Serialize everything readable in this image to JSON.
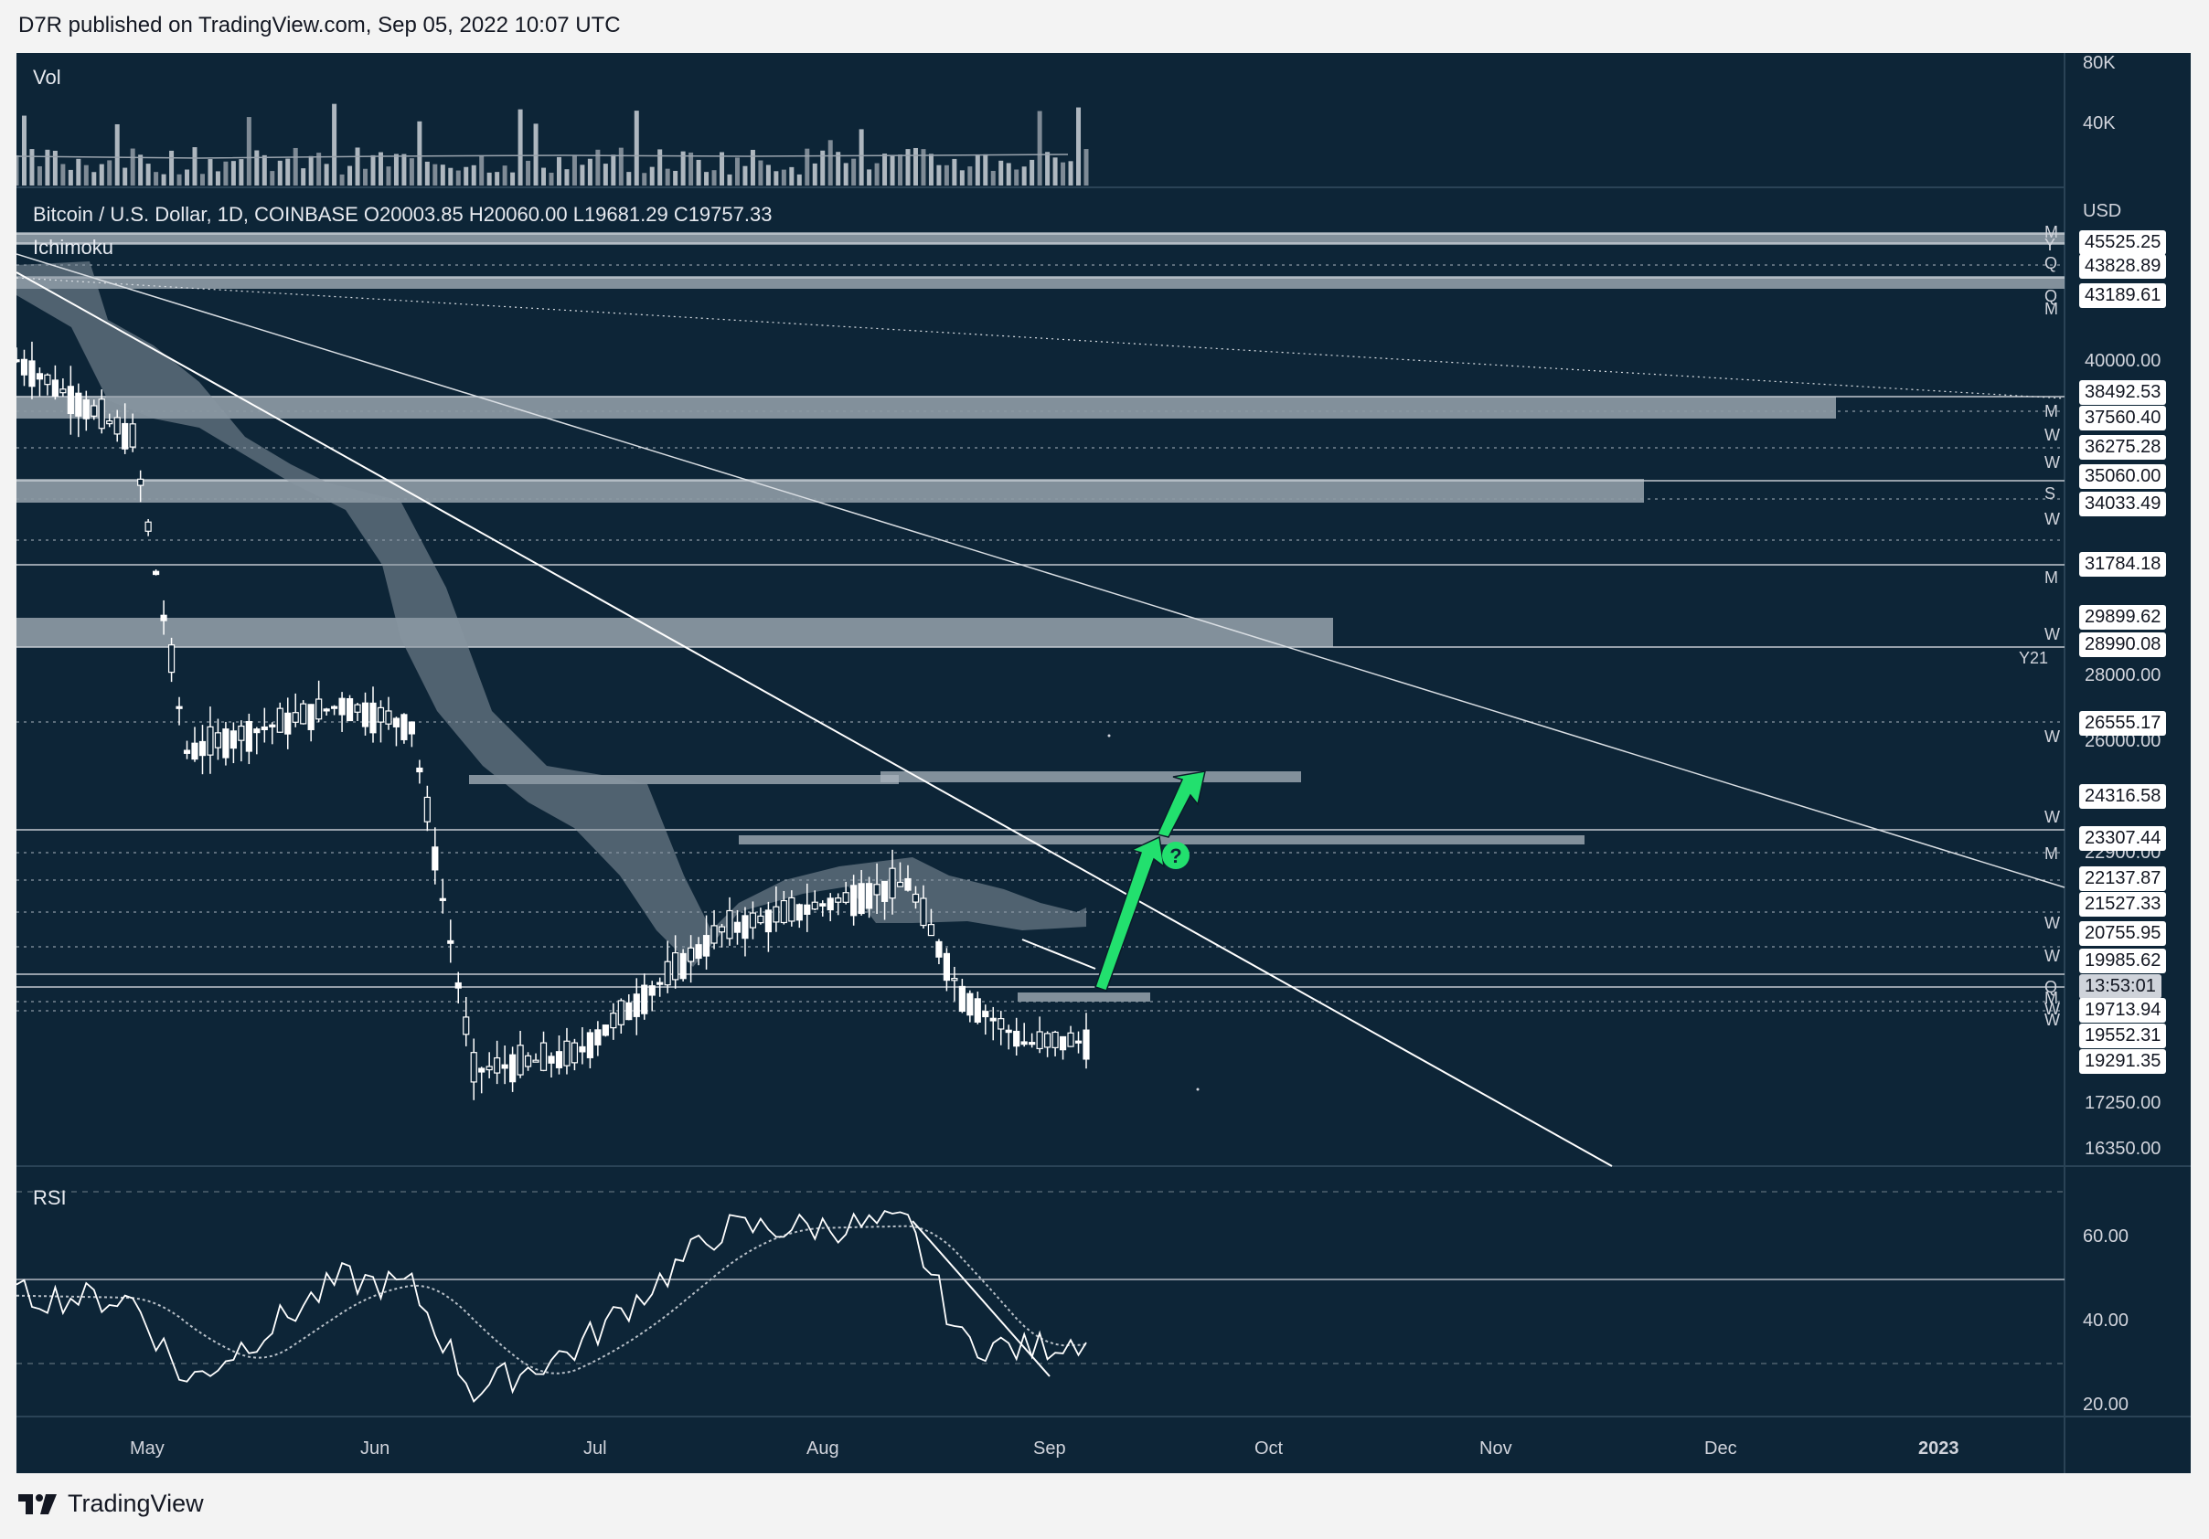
{
  "header": {
    "text": "D7R published on TradingView.com, Sep 05, 2022 10:07 UTC"
  },
  "volume_pane": {
    "title": "Vol",
    "axis": [
      "80K",
      "40K"
    ]
  },
  "main_pane": {
    "title": "Bitcoin / U.S. Dollar, 1D, COINBASE",
    "ohlc": {
      "open": "O20003.85",
      "high": "H20060.00",
      "low": "L19681.29",
      "close": "C19757.33"
    },
    "indicator": "Ichimoku",
    "currency": "USD",
    "axis_prices": [
      "40000.00",
      "28000.00",
      "26000.00",
      "22900.00",
      "17250.00",
      "16350.00"
    ],
    "price_tags": [
      "45525.25",
      "43828.89",
      "43189.61",
      "38492.53",
      "37560.40",
      "36275.28",
      "35060.00",
      "34033.49",
      "31784.18",
      "29899.62",
      "28990.08",
      "26555.17",
      "24316.58",
      "23307.44",
      "22137.87",
      "21527.33",
      "20755.95",
      "19985.62",
      "19713.94",
      "19552.31",
      "19291.35"
    ],
    "countdown": "13:53:01",
    "level_markers": [
      "M",
      "Y",
      "Q",
      "Q",
      "M",
      "M",
      "W",
      "W",
      "S",
      "W",
      "M",
      "W",
      "Y21",
      "W",
      "W",
      "M",
      "W",
      "W",
      "Q",
      "M",
      "W",
      "W"
    ],
    "question_mark": "?"
  },
  "rsi_pane": {
    "title": "RSI",
    "axis": [
      "60.00",
      "40.00",
      "20.00"
    ]
  },
  "time_axis": [
    "May",
    "Jun",
    "Jul",
    "Aug",
    "Sep",
    "Oct",
    "Nov",
    "Dec",
    "2023"
  ],
  "footer": {
    "brand": "TradingView"
  },
  "colors": {
    "background": "#0d2537",
    "arrow": "#22e06e",
    "text": "#d1d4dc"
  },
  "chart_data": [
    {
      "type": "line",
      "title": "Bitcoin / U.S. Dollar, 1D, COINBASE",
      "x": [
        "2022-04-20",
        "2022-05-05",
        "2022-05-12",
        "2022-06-01",
        "2022-06-10",
        "2022-06-18",
        "2022-07-01",
        "2022-07-20",
        "2022-08-13",
        "2022-08-20",
        "2022-08-28",
        "2022-09-05"
      ],
      "series": [
        {
          "values": [
            41500,
            39000,
            29000,
            30500,
            29800,
            18800,
            19300,
            23300,
            24800,
            21200,
            19700,
            19757
          ]
        }
      ],
      "ylim": [
        16350,
        46500
      ]
    },
    {
      "type": "line",
      "title": "RSI",
      "x": [
        "2022-04-20",
        "2022-05-05",
        "2022-05-12",
        "2022-06-01",
        "2022-06-10",
        "2022-06-18",
        "2022-07-01",
        "2022-07-20",
        "2022-08-13",
        "2022-08-20",
        "2022-08-28",
        "2022-09-05"
      ],
      "series": [
        {
          "values": [
            46,
            45,
            25,
            50,
            48,
            23,
            33,
            62,
            63,
            35,
            33,
            36
          ]
        }
      ],
      "ylim": [
        15,
        72
      ]
    }
  ]
}
